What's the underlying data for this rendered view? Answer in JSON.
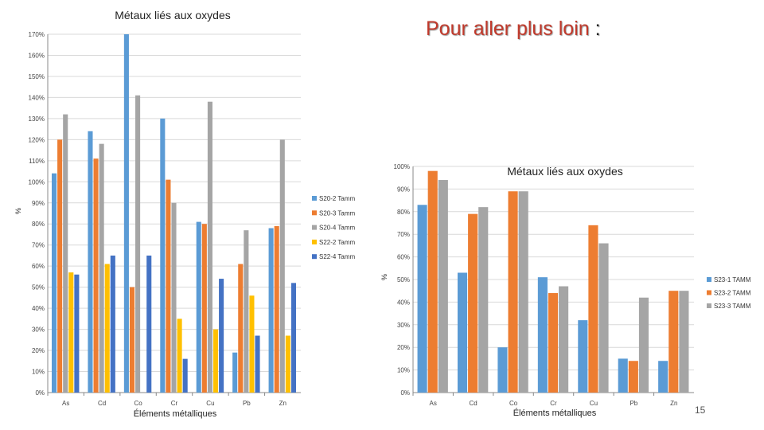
{
  "slide": {
    "heading_main": "Pour aller plus loin",
    "heading_suffix": " :",
    "page_number": "15"
  },
  "chart_data": [
    {
      "type": "bar",
      "title": "Métaux liés aux oxydes",
      "xlabel": "Éléments métalliques",
      "ylabel": "%",
      "ylim": [
        0,
        170
      ],
      "yticks": [
        "0%",
        "10%",
        "20%",
        "30%",
        "40%",
        "50%",
        "60%",
        "70%",
        "80%",
        "90%",
        "100%",
        "110%",
        "120%",
        "130%",
        "140%",
        "150%",
        "160%",
        "170%"
      ],
      "grid": true,
      "legend": "right",
      "categories": [
        "As",
        "Cd",
        "Co",
        "Cr",
        "Cu",
        "Pb",
        "Zn"
      ],
      "series": [
        {
          "name": "S20-2 Tamm",
          "color": "#5b9bd5",
          "values": [
            104,
            124,
            170,
            130,
            81,
            19,
            78
          ]
        },
        {
          "name": "S20-3 Tamm",
          "color": "#ed7d31",
          "values": [
            120,
            111,
            50,
            101,
            80,
            61,
            79
          ]
        },
        {
          "name": "S20-4 Tamm",
          "color": "#a5a5a5",
          "values": [
            132,
            118,
            141,
            90,
            138,
            77,
            120
          ]
        },
        {
          "name": "S22-2 Tamm",
          "color": "#ffc000",
          "values": [
            57,
            61,
            0,
            35,
            30,
            46,
            27
          ]
        },
        {
          "name": "S22-4 Tamm",
          "color": "#4472c4",
          "values": [
            56,
            65,
            65,
            16,
            54,
            27,
            52
          ]
        }
      ]
    },
    {
      "type": "bar",
      "title": "Métaux liés aux oxydes",
      "xlabel": "Éléments métalliques",
      "ylabel": "%",
      "ylim": [
        0,
        100
      ],
      "yticks": [
        "0%",
        "10%",
        "20%",
        "30%",
        "40%",
        "50%",
        "60%",
        "70%",
        "80%",
        "90%",
        "100%"
      ],
      "grid": true,
      "legend": "right",
      "categories": [
        "As",
        "Cd",
        "Co",
        "Cr",
        "Cu",
        "Pb",
        "Zn"
      ],
      "series": [
        {
          "name": "S23-1 TAMM",
          "color": "#5b9bd5",
          "values": [
            83,
            53,
            20,
            51,
            32,
            15,
            14
          ]
        },
        {
          "name": "S23-2 TAMM",
          "color": "#ed7d31",
          "values": [
            98,
            79,
            89,
            44,
            74,
            14,
            45
          ]
        },
        {
          "name": "S23-3 TAMM",
          "color": "#a5a5a5",
          "values": [
            94,
            82,
            89,
            47,
            66,
            42,
            45
          ]
        }
      ]
    }
  ]
}
